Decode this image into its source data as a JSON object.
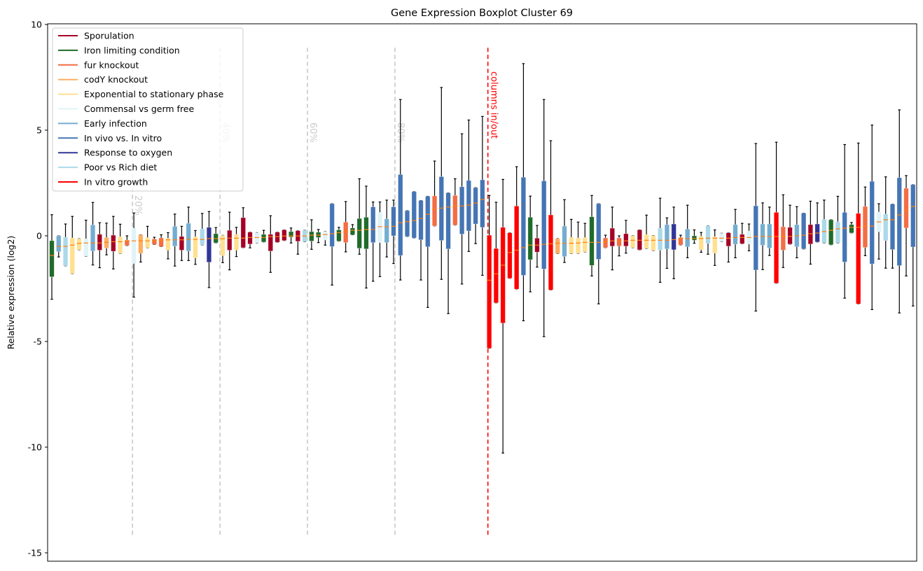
{
  "chart_data": {
    "type": "boxplot",
    "title": "Gene Expression Boxplot Cluster 69",
    "xlabel": "",
    "ylabel": "Relative expression (log2)",
    "ylim": [
      -15.4,
      10
    ],
    "yticks": [
      10,
      5,
      0,
      -5,
      -10,
      -15
    ],
    "grid": false,
    "legend_position": "top-left",
    "categories": [
      {
        "name": "Sporulation",
        "color": "#a50026"
      },
      {
        "name": "Iron limiting condition",
        "color": "#1f6b2b"
      },
      {
        "name": "fur knockout",
        "color": "#f46d43"
      },
      {
        "name": "codY knockout",
        "color": "#fdae61"
      },
      {
        "name": "Exponential to stationary phase",
        "color": "#fee090"
      },
      {
        "name": "Commensal vs germ free",
        "color": "#e0f3f8"
      },
      {
        "name": "Early infection",
        "color": "#74add1"
      },
      {
        "name": "In vivo vs. In vitro",
        "color": "#4575b4"
      },
      {
        "name": "Response to oxygen",
        "color": "#313695"
      },
      {
        "name": "Poor vs Rich diet",
        "color": "#abd9e9"
      },
      {
        "name": "In vitro growth",
        "color": "#ff0000"
      }
    ],
    "box_fields": [
      "category_index",
      "whisker_low",
      "q1",
      "median",
      "q3",
      "whisker_high"
    ],
    "boxes": [
      [
        1,
        -3.0,
        -1.94,
        -0.93,
        -0.23,
        1.0
      ],
      [
        6,
        -1.0,
        -0.75,
        -0.5,
        0.0,
        0.0
      ],
      [
        9,
        -1.42,
        -1.42,
        -0.5,
        -0.07,
        0.56
      ],
      [
        4,
        -1.79,
        -1.79,
        -0.44,
        -0.1,
        0.92
      ],
      [
        4,
        -0.66,
        -0.66,
        -0.36,
        -0.14,
        -0.14
      ],
      [
        5,
        -0.97,
        -0.97,
        -0.34,
        -0.14,
        0.74
      ],
      [
        6,
        -1.38,
        -0.72,
        -0.34,
        0.52,
        1.58
      ],
      [
        0,
        -1.51,
        -0.68,
        -0.34,
        0.07,
        0.62
      ],
      [
        3,
        -0.9,
        -0.58,
        -0.31,
        -0.08,
        0.6
      ],
      [
        0,
        -1.57,
        -0.73,
        -0.28,
        0.03,
        0.92
      ],
      [
        4,
        -0.83,
        -0.83,
        -0.28,
        -0.04,
        0.55
      ],
      [
        2,
        -0.46,
        -0.46,
        -0.24,
        -0.2,
        0.0
      ],
      [
        5,
        -2.9,
        -1.31,
        -0.24,
        0.36,
        1.08
      ],
      [
        3,
        -1.24,
        -0.83,
        -0.24,
        0.05,
        0.05
      ],
      [
        4,
        -0.56,
        -0.56,
        -0.24,
        -0.08,
        0.45
      ],
      [
        2,
        -0.41,
        -0.41,
        -0.22,
        -0.15,
        -0.07
      ],
      [
        2,
        -0.51,
        -0.51,
        -0.22,
        -0.1,
        0.05
      ],
      [
        4,
        -1.09,
        -0.68,
        -0.19,
        -0.12,
        0.15
      ],
      [
        6,
        -1.43,
        -0.49,
        -0.19,
        0.45,
        1.03
      ],
      [
        0,
        -1.17,
        -0.68,
        -0.19,
        -0.03,
        0.45
      ],
      [
        6,
        -1.17,
        -0.72,
        -0.17,
        0.59,
        1.36
      ],
      [
        4,
        -1.35,
        -1.05,
        -0.17,
        -0.04,
        0.25
      ],
      [
        9,
        -0.43,
        -0.43,
        -0.17,
        0.33,
        1.06
      ],
      [
        8,
        -2.45,
        -1.25,
        -0.13,
        0.4,
        1.15
      ],
      [
        1,
        -0.33,
        -0.33,
        -0.13,
        0.1,
        0.39
      ],
      [
        4,
        -1.27,
        -0.94,
        -0.14,
        0.02,
        0.02
      ],
      [
        0,
        -1.61,
        -0.68,
        -0.11,
        0.26,
        1.12
      ],
      [
        4,
        -0.98,
        -0.68,
        -0.11,
        0.07,
        0.4
      ],
      [
        0,
        -0.56,
        -0.56,
        -0.11,
        0.86,
        1.33
      ],
      [
        0,
        -0.57,
        -0.39,
        -0.08,
        0.17,
        0.17
      ],
      [
        5,
        -0.33,
        -0.33,
        -0.08,
        0.15,
        0.15
      ],
      [
        1,
        -0.29,
        -0.29,
        -0.08,
        0.07,
        0.26
      ],
      [
        0,
        -1.73,
        -0.72,
        -0.04,
        0.07,
        0.95
      ],
      [
        0,
        -0.3,
        -0.3,
        -0.04,
        0.17,
        0.17
      ],
      [
        0,
        -0.22,
        -0.22,
        -0.01,
        0.28,
        0.28
      ],
      [
        1,
        -0.34,
        -0.06,
        -0.01,
        0.2,
        0.37
      ],
      [
        0,
        -0.87,
        -0.26,
        -0.01,
        0.24,
        0.24
      ],
      [
        9,
        -0.28,
        -0.28,
        -0.01,
        0.26,
        0.26
      ],
      [
        1,
        -0.64,
        -0.25,
        0.03,
        0.2,
        0.76
      ],
      [
        1,
        -0.32,
        -0.08,
        0.03,
        0.17,
        0.3
      ],
      [
        5,
        -0.44,
        -0.2,
        0.06,
        0.2,
        0.2
      ],
      [
        7,
        -2.33,
        -0.51,
        0.1,
        1.52,
        1.52
      ],
      [
        1,
        -0.25,
        -0.25,
        0.15,
        0.28,
        0.4
      ],
      [
        2,
        -0.76,
        -0.32,
        0.2,
        0.65,
        1.62
      ],
      [
        1,
        0.05,
        0.05,
        0.26,
        0.37,
        0.53
      ],
      [
        1,
        -0.87,
        -0.59,
        0.26,
        0.82,
        2.7
      ],
      [
        1,
        -2.47,
        -0.62,
        0.3,
        0.88,
        2.35
      ],
      [
        7,
        -2.15,
        -0.32,
        0.3,
        1.37,
        1.6
      ],
      [
        5,
        -1.93,
        -0.32,
        0.43,
        1.11,
        1.6
      ],
      [
        6,
        -1.0,
        -0.32,
        0.43,
        0.8,
        1.69
      ],
      [
        7,
        -1.31,
        0.0,
        0.45,
        1.37,
        1.69
      ],
      [
        7,
        -2.09,
        -0.93,
        0.62,
        2.9,
        6.45
      ],
      [
        7,
        -0.03,
        -0.03,
        0.67,
        1.19,
        1.19
      ],
      [
        7,
        -0.1,
        -0.1,
        0.72,
        2.09,
        2.09
      ],
      [
        7,
        -2.09,
        -0.19,
        0.82,
        1.67,
        1.67
      ],
      [
        7,
        -3.39,
        -0.52,
        1.02,
        1.87,
        1.87
      ],
      [
        2,
        0.47,
        0.47,
        1.25,
        1.89,
        3.54
      ],
      [
        7,
        -2.06,
        -0.22,
        1.31,
        2.8,
        7.02
      ],
      [
        7,
        -3.68,
        -0.62,
        1.36,
        2.03,
        2.03
      ],
      [
        2,
        0.51,
        0.51,
        1.41,
        1.91,
        2.7
      ],
      [
        7,
        -2.28,
        0.08,
        1.41,
        2.32,
        4.83
      ],
      [
        7,
        -0.74,
        0.23,
        1.45,
        2.62,
        5.48
      ],
      [
        7,
        -0.37,
        0.56,
        1.55,
        2.28,
        2.28
      ],
      [
        7,
        -1.87,
        0.4,
        1.72,
        2.65,
        5.65
      ],
      [
        10,
        -5.32,
        -5.32,
        -2.1,
        0.03,
        1.91
      ],
      [
        10,
        -3.17,
        -3.17,
        -1.8,
        -0.6,
        1.59
      ],
      [
        10,
        -10.28,
        -4.13,
        -1.39,
        0.4,
        2.67
      ],
      [
        10,
        -2.01,
        -2.01,
        -0.79,
        0.14,
        0.14
      ],
      [
        10,
        -2.52,
        -2.52,
        -0.68,
        1.41,
        3.27
      ],
      [
        7,
        -4.02,
        -1.87,
        -0.56,
        2.77,
        8.15
      ],
      [
        1,
        -2.65,
        -1.13,
        -0.44,
        0.88,
        1.88
      ],
      [
        0,
        -1.48,
        -0.77,
        -0.44,
        -0.11,
        0.49
      ],
      [
        7,
        -4.77,
        -1.57,
        -0.4,
        2.6,
        6.45
      ],
      [
        10,
        -2.56,
        -2.56,
        -0.38,
        0.99,
        4.5
      ],
      [
        3,
        -0.84,
        -0.84,
        -0.35,
        -0.13,
        -0.13
      ],
      [
        6,
        -1.26,
        -0.98,
        -0.35,
        0.46,
        1.71
      ],
      [
        4,
        -0.84,
        -0.84,
        -0.35,
        -0.07,
        0.78
      ],
      [
        4,
        -0.83,
        -0.83,
        -0.34,
        -0.1,
        0.65
      ],
      [
        4,
        -0.76,
        -0.76,
        -0.31,
        -0.08,
        0.59
      ],
      [
        1,
        -1.9,
        -1.4,
        -0.31,
        0.9,
        1.91
      ],
      [
        7,
        -3.22,
        -1.11,
        -0.31,
        1.52,
        1.52
      ],
      [
        2,
        -0.56,
        -0.56,
        -0.28,
        -0.1,
        0.03
      ],
      [
        0,
        -1.61,
        -0.49,
        -0.24,
        0.36,
        1.36
      ],
      [
        2,
        -0.95,
        -0.49,
        -0.24,
        -0.1,
        0.0
      ],
      [
        0,
        -0.82,
        -0.49,
        -0.24,
        0.1,
        0.73
      ],
      [
        4,
        -0.56,
        -0.56,
        -0.21,
        0.01,
        0.01
      ],
      [
        0,
        -0.66,
        -0.66,
        -0.21,
        0.28,
        0.28
      ],
      [
        4,
        -0.6,
        -0.6,
        -0.21,
        0.06,
        0.98
      ],
      [
        4,
        -0.7,
        -0.7,
        -0.21,
        0.01,
        0.01
      ],
      [
        9,
        -2.2,
        -0.68,
        -0.21,
        0.36,
        1.78
      ],
      [
        6,
        -1.54,
        -0.62,
        -0.21,
        0.53,
        0.85
      ],
      [
        8,
        -2.03,
        -0.66,
        -0.18,
        0.56,
        1.36
      ],
      [
        2,
        -0.43,
        -0.43,
        -0.13,
        -0.08,
        0.03
      ],
      [
        6,
        -1.04,
        -0.52,
        -0.13,
        0.32,
        1.45
      ],
      [
        1,
        -0.35,
        -0.21,
        -0.13,
        0.0,
        0.28
      ],
      [
        4,
        -0.78,
        -0.66,
        -0.13,
        -0.02,
        0.16
      ],
      [
        9,
        -0.87,
        -0.36,
        -0.11,
        0.47,
        0.47
      ],
      [
        4,
        -1.4,
        -0.82,
        -0.11,
        -0.04,
        0.28
      ],
      [
        5,
        -0.27,
        -0.27,
        -0.11,
        0.12,
        0.12
      ],
      [
        0,
        -1.24,
        -0.49,
        -0.11,
        0.14,
        0.14
      ],
      [
        6,
        -1.04,
        -0.4,
        -0.08,
        0.53,
        1.25
      ],
      [
        0,
        -0.37,
        -0.37,
        -0.08,
        0.07,
        0.59
      ],
      [
        5,
        -0.71,
        -0.39,
        -0.08,
        0.23,
        0.56
      ],
      [
        7,
        -3.56,
        -1.62,
        -0.03,
        1.42,
        4.37
      ],
      [
        6,
        -1.6,
        -0.45,
        -0.03,
        0.56,
        1.56
      ],
      [
        6,
        -0.93,
        -0.58,
        -0.03,
        0.56,
        1.36
      ],
      [
        10,
        -2.24,
        -2.24,
        -0.03,
        1.11,
        4.43
      ],
      [
        2,
        -1.5,
        -0.68,
        -0.03,
        0.43,
        1.94
      ],
      [
        0,
        -0.39,
        -0.39,
        -0.03,
        0.4,
        1.45
      ],
      [
        6,
        -1.04,
        -0.52,
        0.0,
        0.53,
        1.38
      ],
      [
        7,
        -0.62,
        -0.62,
        0.03,
        1.07,
        1.07
      ],
      [
        0,
        -1.34,
        -0.39,
        0.1,
        0.53,
        1.64
      ],
      [
        8,
        -0.29,
        -0.29,
        0.13,
        0.56,
        1.56
      ],
      [
        9,
        -0.34,
        -0.34,
        0.2,
        0.78,
        1.69
      ],
      [
        1,
        -0.42,
        -0.42,
        0.26,
        0.76,
        0.76
      ],
      [
        9,
        -0.34,
        -0.34,
        0.33,
        0.66,
        1.87
      ],
      [
        7,
        -2.95,
        -1.24,
        0.36,
        1.11,
        4.32
      ],
      [
        1,
        0.14,
        0.14,
        0.4,
        0.53,
        0.63
      ],
      [
        10,
        -3.22,
        -3.22,
        0.4,
        1.06,
        4.39
      ],
      [
        2,
        -0.94,
        -0.55,
        0.46,
        1.39,
        2.31
      ],
      [
        7,
        -3.49,
        -1.33,
        0.46,
        2.58,
        5.24
      ],
      [
        5,
        -1.1,
        0.19,
        0.66,
        1.13,
        1.52
      ],
      [
        9,
        -1.53,
        -0.23,
        0.76,
        1.03,
        2.79
      ],
      [
        7,
        -1.53,
        -0.65,
        0.76,
        1.5,
        1.5
      ],
      [
        7,
        -3.65,
        -1.41,
        0.99,
        2.75,
        5.96
      ],
      [
        2,
        -1.9,
        0.37,
        1.2,
        2.25,
        2.85
      ],
      [
        7,
        -3.32,
        -0.53,
        1.39,
        2.42,
        2.42
      ]
    ],
    "median_color": "#ff7f0e",
    "percent_markers": [
      {
        "label": "20%",
        "position": 12.8
      },
      {
        "label": "40%",
        "position": 25.6
      },
      {
        "label": "60%",
        "position": 38.4
      },
      {
        "label": "80%",
        "position": 51.2
      }
    ],
    "in_out_marker": {
      "label": "columns in/out",
      "position": 64.8,
      "color": "#ff0000"
    }
  }
}
